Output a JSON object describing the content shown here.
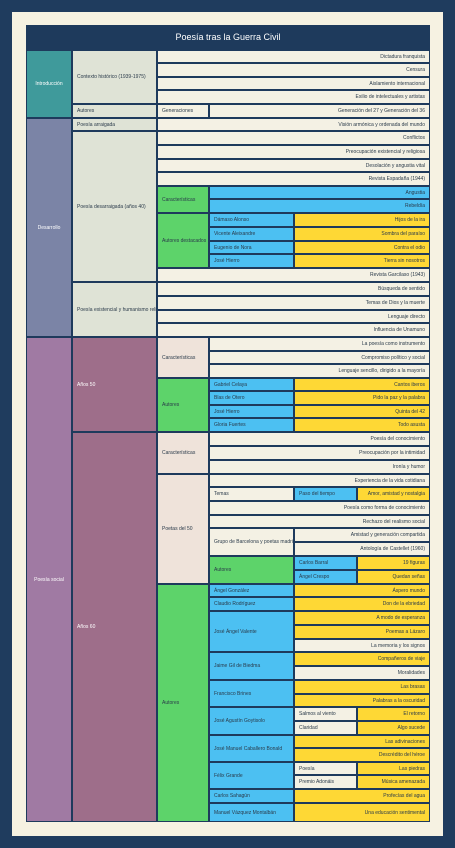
{
  "title": "Poesía tras la Guerra Civil",
  "cells": [
    "Introducción",
    "Contexto histórico (1939-1975)",
    "Dictadura franquista",
    "Censura",
    "Aislamiento internacional",
    "Exilio de intelectuales y artistas",
    "Autores",
    "Generaciones",
    "Generación del 27 y Generación del 36",
    "Desarrollo",
    "Poesía arraigada",
    "Visión armónica y ordenada del mundo",
    "Poesía desarraigada (años 40)",
    "Conflictos",
    "Preocupación existencial y religiosa",
    "Desolación y angustia vital",
    "Revista Espadaña (1944)",
    "Características",
    "Angustia",
    "Rebeldía",
    "Autores destacados",
    "Dámaso Alonso",
    "Hijos de la ira",
    "Vicente Aleixandre",
    "Sombra del paraíso",
    "Eugenio de Nora",
    "Contra el odio",
    "José Hierro",
    "Tierra sin nosotros",
    "Revista Garcilaso (1943)",
    "Poesía existencial y humanismo religioso",
    "Búsqueda de sentido",
    "Temas de Dios y la muerte",
    "Lenguaje directo",
    "Influencia de Unamuno",
    "Poesía social",
    "Años 50",
    "Características",
    "La poesía como instrumento",
    "Compromiso político y social",
    "Lenguaje sencillo, dirigido a la mayoría",
    "Autores",
    "Gabriel Celaya",
    "Cantos iberos",
    "Blas de Otero",
    "Pido la paz y la palabra",
    "José Hierro",
    "Quinta del 42",
    "Gloria Fuertes",
    "Todo asusta",
    "Años 60",
    "Características",
    "Poesía del conocimiento",
    "Preocupación por la intimidad",
    "Ironía y humor",
    "Poetas del 50",
    "Experiencia de la vida cotidiana",
    "Temas",
    "Paso del tiempo",
    "Amor, amistad y nostalgia",
    "Poesía como forma de conocimiento",
    "Rechazo del realismo social",
    "Grupo de Barcelona y poetas madrileños",
    "Amistad y generación compartida",
    "Antología de Castellet (1960)",
    "Autores",
    "Carlos Barral",
    "19 figuras",
    "Ángel Crespo",
    "Quedan señas",
    "Autores",
    "Ángel González",
    "Áspero mundo",
    "Claudio Rodríguez",
    "Don de la ebriedad",
    "José Ángel Valente",
    "A modo de esperanza",
    "Poemas a Lázaro",
    "La memoria y los signos",
    "Jaime Gil de Biedma",
    "Compañeros de viaje",
    "Moralidades",
    "Francisco Brines",
    "Las brasas",
    "Palabras a la oscuridad",
    "José Agustín Goytisolo",
    "Salmos al viento",
    "El retorno",
    "Claridad",
    "Algo sucede",
    "José Manuel Caballero Bonald",
    "Las adivinaciones",
    "Descrédito del héroe",
    "Félix Grande",
    "Poesía",
    "Las piedras",
    "Premio Adonáis",
    "Música amenazada",
    "Carlos Sahagún",
    "Profecías del agua",
    "Manuel Vázquez Montalbán",
    "Una educación sentimental"
  ]
}
